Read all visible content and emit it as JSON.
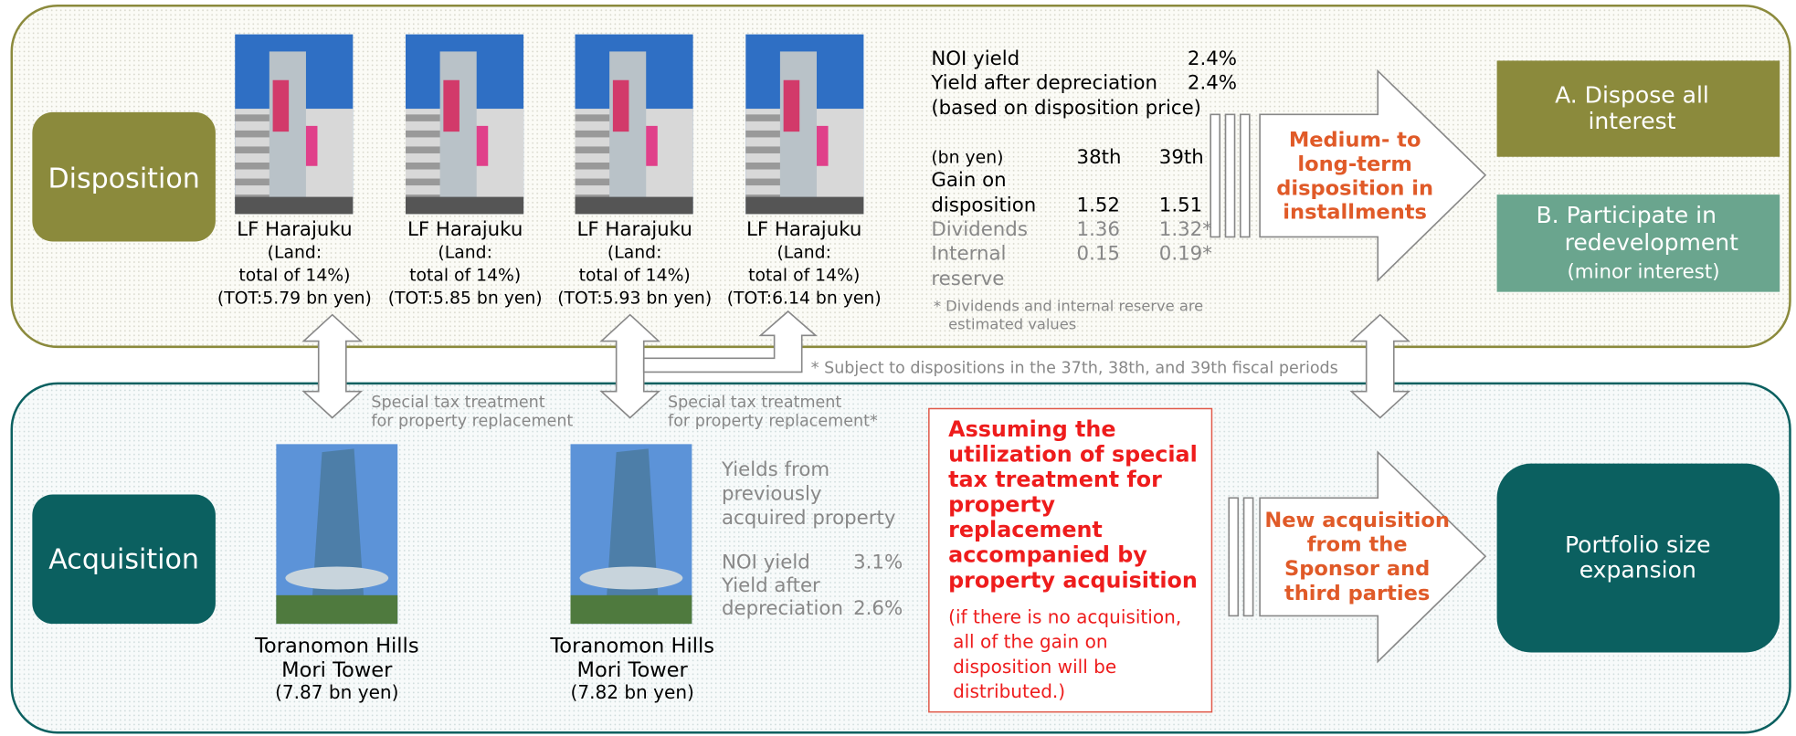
{
  "disposition": {
    "label": "Disposition",
    "properties": [
      {
        "name": "LF Harajuku",
        "land": "(Land:",
        "share": "total of 14%)",
        "tot": "(TOT:5.79 bn yen)"
      },
      {
        "name": "LF Harajuku",
        "land": "(Land:",
        "share": "total of 14%)",
        "tot": "(TOT:5.85 bn yen)"
      },
      {
        "name": "LF Harajuku",
        "land": "(Land:",
        "share": "total of 14%)",
        "tot": "(TOT:5.93 bn yen)"
      },
      {
        "name": "LF Harajuku",
        "land": "(Land:",
        "share": "total of 14%)",
        "tot": "(TOT:6.14 bn yen)"
      }
    ],
    "yields": [
      {
        "label": "NOI yield",
        "value": "2.4%"
      },
      {
        "label": "Yield after depreciation",
        "value": "2.4%"
      }
    ],
    "yield_basis": "(based on disposition price)",
    "table": {
      "header": [
        "(bn yen)",
        "38th",
        "39th"
      ],
      "rows": [
        {
          "label": [
            "Gain on",
            "disposition"
          ],
          "values": [
            "1.52",
            "1.51"
          ]
        },
        {
          "label": [
            "Dividends"
          ],
          "values": [
            "1.36",
            "1.32*"
          ]
        },
        {
          "label": [
            "Internal",
            "reserve"
          ],
          "values": [
            "0.15",
            "0.19*"
          ]
        }
      ]
    },
    "note": [
      "* Dividends and internal reserve are",
      "estimated values"
    ],
    "arrow": [
      "Medium- to",
      "long-term",
      "disposition in",
      "installments"
    ],
    "outcomes": [
      {
        "lines": [
          "A. Dispose all",
          "interest"
        ]
      },
      {
        "lines": [
          "B. Participate in",
          "redevelopment",
          "(minor interest)"
        ]
      }
    ]
  },
  "middle": {
    "note": "* Subject to dispositions in the 37th, 38th, and 39th fiscal periods",
    "tax_labels": [
      [
        "Special tax treatment",
        "for property replacement"
      ],
      [
        "Special tax treatment",
        "for property replacement*"
      ]
    ]
  },
  "acquisition": {
    "label": "Acquisition",
    "properties": [
      {
        "name": [
          "Toranomon Hills",
          "Mori Tower"
        ],
        "price": "(7.87 bn yen)"
      },
      {
        "name": [
          "Toranomon Hills",
          "Mori Tower"
        ],
        "price": "(7.82 bn yen)"
      }
    ],
    "prev_title": [
      "Yields from",
      "previously",
      "acquired property"
    ],
    "prev_yields": [
      {
        "label": [
          "NOI yield"
        ],
        "value": "3.1%"
      },
      {
        "label": [
          "Yield after",
          "depreciation"
        ],
        "value": "2.6%"
      }
    ],
    "assumption": [
      "Assuming the",
      "utilization of special",
      "tax treatment for",
      "property",
      "replacement",
      "accompanied by",
      "property acquisition"
    ],
    "assumption_note": [
      "(if there is no acquisition,",
      "all of the gain on",
      "disposition will be",
      "distributed.)"
    ],
    "arrow": [
      "New acquisition",
      "from the",
      "Sponsor and",
      "third parties"
    ],
    "result": [
      "Portfolio size",
      "expansion"
    ]
  }
}
